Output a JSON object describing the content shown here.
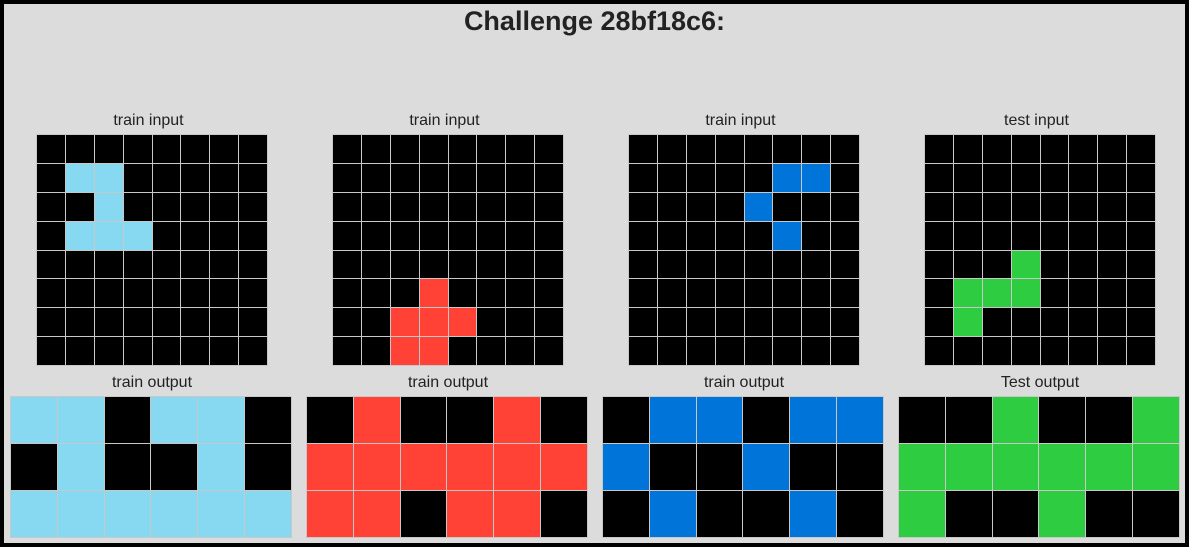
{
  "title": "Challenge 28bf18c6:",
  "palette": {
    "0": "#000000",
    "1": "#0074D9",
    "2": "#FF4136",
    "3": "#2ECC40",
    "8": "#87D8F1"
  },
  "panels": [
    {
      "label": "train input",
      "grid": [
        [
          0,
          0,
          0,
          0,
          0,
          0,
          0,
          0
        ],
        [
          0,
          8,
          8,
          0,
          0,
          0,
          0,
          0
        ],
        [
          0,
          0,
          8,
          0,
          0,
          0,
          0,
          0
        ],
        [
          0,
          8,
          8,
          8,
          0,
          0,
          0,
          0
        ],
        [
          0,
          0,
          0,
          0,
          0,
          0,
          0,
          0
        ],
        [
          0,
          0,
          0,
          0,
          0,
          0,
          0,
          0
        ],
        [
          0,
          0,
          0,
          0,
          0,
          0,
          0,
          0
        ],
        [
          0,
          0,
          0,
          0,
          0,
          0,
          0,
          0
        ]
      ]
    },
    {
      "label": "train input",
      "grid": [
        [
          0,
          0,
          0,
          0,
          0,
          0,
          0,
          0
        ],
        [
          0,
          0,
          0,
          0,
          0,
          0,
          0,
          0
        ],
        [
          0,
          0,
          0,
          0,
          0,
          0,
          0,
          0
        ],
        [
          0,
          0,
          0,
          0,
          0,
          0,
          0,
          0
        ],
        [
          0,
          0,
          0,
          0,
          0,
          0,
          0,
          0
        ],
        [
          0,
          0,
          0,
          2,
          0,
          0,
          0,
          0
        ],
        [
          0,
          0,
          2,
          2,
          2,
          0,
          0,
          0
        ],
        [
          0,
          0,
          2,
          2,
          0,
          0,
          0,
          0
        ]
      ]
    },
    {
      "label": "train input",
      "grid": [
        [
          0,
          0,
          0,
          0,
          0,
          0,
          0,
          0
        ],
        [
          0,
          0,
          0,
          0,
          0,
          1,
          1,
          0
        ],
        [
          0,
          0,
          0,
          0,
          1,
          0,
          0,
          0
        ],
        [
          0,
          0,
          0,
          0,
          0,
          1,
          0,
          0
        ],
        [
          0,
          0,
          0,
          0,
          0,
          0,
          0,
          0
        ],
        [
          0,
          0,
          0,
          0,
          0,
          0,
          0,
          0
        ],
        [
          0,
          0,
          0,
          0,
          0,
          0,
          0,
          0
        ],
        [
          0,
          0,
          0,
          0,
          0,
          0,
          0,
          0
        ]
      ]
    },
    {
      "label": "test input",
      "grid": [
        [
          0,
          0,
          0,
          0,
          0,
          0,
          0,
          0
        ],
        [
          0,
          0,
          0,
          0,
          0,
          0,
          0,
          0
        ],
        [
          0,
          0,
          0,
          0,
          0,
          0,
          0,
          0
        ],
        [
          0,
          0,
          0,
          0,
          0,
          0,
          0,
          0
        ],
        [
          0,
          0,
          0,
          3,
          0,
          0,
          0,
          0
        ],
        [
          0,
          3,
          3,
          3,
          0,
          0,
          0,
          0
        ],
        [
          0,
          3,
          0,
          0,
          0,
          0,
          0,
          0
        ],
        [
          0,
          0,
          0,
          0,
          0,
          0,
          0,
          0
        ]
      ]
    },
    {
      "label": "train output",
      "grid": [
        [
          8,
          8,
          0,
          8,
          8,
          0
        ],
        [
          0,
          8,
          0,
          0,
          8,
          0
        ],
        [
          8,
          8,
          8,
          8,
          8,
          8
        ]
      ]
    },
    {
      "label": "train output",
      "grid": [
        [
          0,
          2,
          0,
          0,
          2,
          0
        ],
        [
          2,
          2,
          2,
          2,
          2,
          2
        ],
        [
          2,
          2,
          0,
          2,
          2,
          0
        ]
      ]
    },
    {
      "label": "train output",
      "grid": [
        [
          0,
          1,
          1,
          0,
          1,
          1
        ],
        [
          1,
          0,
          0,
          1,
          0,
          0
        ],
        [
          0,
          1,
          0,
          0,
          1,
          0
        ]
      ]
    },
    {
      "label": "Test output",
      "grid": [
        [
          0,
          0,
          3,
          0,
          0,
          3
        ],
        [
          3,
          3,
          3,
          3,
          3,
          3
        ],
        [
          3,
          0,
          0,
          3,
          0,
          0
        ]
      ]
    }
  ]
}
